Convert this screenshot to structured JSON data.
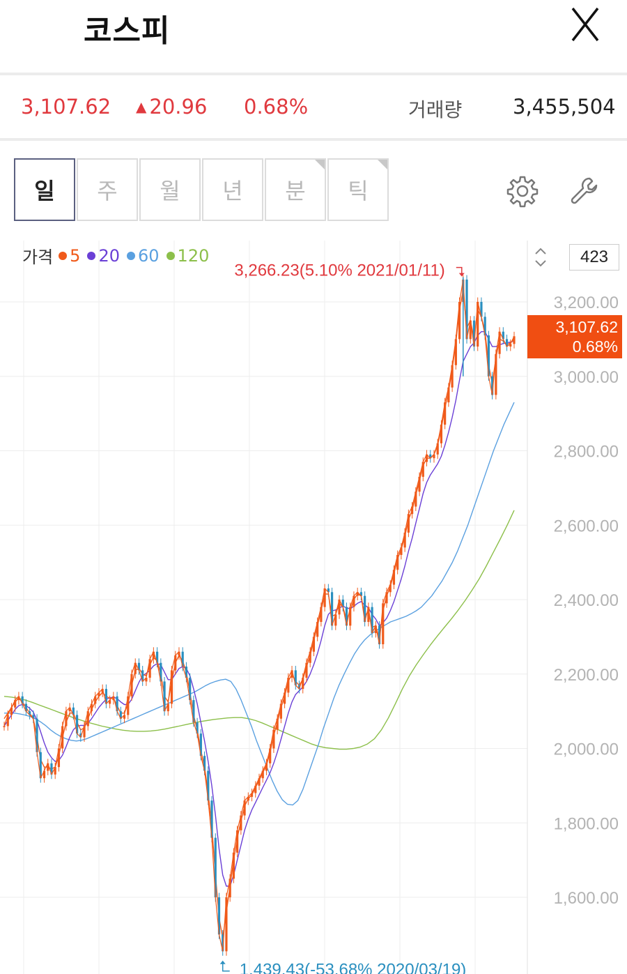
{
  "header": {
    "title": "코스피",
    "close_icon": "close-icon"
  },
  "quote": {
    "price": "3,107.62",
    "change": "20.96",
    "change_direction": "up",
    "change_percent": "0.68%",
    "volume_label": "거래량",
    "volume": "3,455,504",
    "up_color": "#e0393e"
  },
  "tabs": [
    {
      "label": "일",
      "active": true
    },
    {
      "label": "주",
      "active": false
    },
    {
      "label": "월",
      "active": false
    },
    {
      "label": "년",
      "active": false
    },
    {
      "label": "분",
      "active": false,
      "corner": true
    },
    {
      "label": "틱",
      "active": false,
      "corner": true
    }
  ],
  "tools": {
    "settings_icon": "gear-icon",
    "tools_icon": "wrench-icon"
  },
  "legend": {
    "label": "가격",
    "items": [
      {
        "name": "5",
        "color": "#f05a1a"
      },
      {
        "name": "20",
        "color": "#6a3fd6"
      },
      {
        "name": "60",
        "color": "#5aa0e0"
      },
      {
        "name": "120",
        "color": "#8cbf4a"
      }
    ]
  },
  "visible_count": "423",
  "current_tag": {
    "price": "3,107.62",
    "percent": "0.68%",
    "color": "#f04e12"
  },
  "chart_data": {
    "type": "line",
    "y_ticks": [
      "3,200.00",
      "3,000.00",
      "2,800.00",
      "2,600.00",
      "2,400.00",
      "2,200.00",
      "2,000.00",
      "1,800.00",
      "1,600.00"
    ],
    "y_tick_values": [
      3200,
      3000,
      2800,
      2600,
      2400,
      2200,
      2000,
      1800,
      1600
    ],
    "ylim": [
      1420,
      3290
    ],
    "max_annotation": "3,266.23(5.10% 2021/01/11)",
    "min_annotation": "1,439.43(-53.68% 2020/03/19)",
    "max_value": 3266.23,
    "min_value": 1439.43,
    "max_color": "#e0393e",
    "min_color": "#2a8fbf",
    "n_points": 423,
    "series": [
      {
        "name": "가격",
        "color": "#f05a1a",
        "values": [
          2060,
          2090,
          2110,
          2130,
          2140,
          2120,
          2100,
          2090,
          2080,
          1990,
          1920,
          1940,
          1960,
          1930,
          1950,
          2000,
          2060,
          2100,
          2110,
          2090,
          2040,
          2030,
          2060,
          2100,
          2120,
          2140,
          2150,
          2160,
          2120,
          2130,
          2140,
          2100,
          2080,
          2090,
          2140,
          2200,
          2230,
          2210,
          2180,
          2190,
          2240,
          2260,
          2230,
          2180,
          2100,
          2120,
          2210,
          2250,
          2260,
          2220,
          2190,
          2130,
          2070,
          2040,
          1980,
          1940,
          1860,
          1760,
          1600,
          1500,
          1455,
          1600,
          1650,
          1720,
          1780,
          1820,
          1860,
          1870,
          1880,
          1900,
          1920,
          1940,
          1960,
          2000,
          2050,
          2080,
          2120,
          2150,
          2190,
          2210,
          2170,
          2160,
          2190,
          2230,
          2260,
          2300,
          2340,
          2380,
          2430,
          2420,
          2330,
          2360,
          2400,
          2380,
          2330,
          2380,
          2410,
          2420,
          2410,
          2340,
          2380,
          2310,
          2330,
          2280,
          2390,
          2420,
          2440,
          2480,
          2520,
          2540,
          2580,
          2630,
          2650,
          2690,
          2730,
          2770,
          2790,
          2780,
          2790,
          2820,
          2870,
          2930,
          2970,
          3030,
          3100,
          3200,
          3260,
          3100,
          3150,
          3080,
          3200,
          3160,
          3110,
          3000,
          2950,
          3060,
          3120,
          3100,
          3080,
          3087,
          3107.62
        ]
      },
      {
        "name": "5",
        "color": "#f05a1a",
        "values": [
          2080,
          2095,
          2110,
          2125,
          2135,
          2125,
          2110,
          2095,
          2080,
          2030,
          1970,
          1950,
          1950,
          1945,
          1950,
          1980,
          2030,
          2070,
          2095,
          2095,
          2070,
          2050,
          2055,
          2080,
          2105,
          2125,
          2140,
          2150,
          2140,
          2135,
          2135,
          2115,
          2095,
          2095,
          2120,
          2170,
          2210,
          2215,
          2200,
          2195,
          2225,
          2245,
          2235,
          2200,
          2140,
          2125,
          2180,
          2230,
          2250,
          2235,
          2205,
          2150,
          2090,
          2050,
          1995,
          1950,
          1880,
          1790,
          1660,
          1545,
          1490,
          1560,
          1630,
          1700,
          1760,
          1805,
          1845,
          1865,
          1875,
          1895,
          1915,
          1935,
          1955,
          1990,
          2035,
          2070,
          2110,
          2140,
          2180,
          2200,
          2180,
          2170,
          2185,
          2220,
          2250,
          2290,
          2330,
          2370,
          2415,
          2415,
          2355,
          2360,
          2390,
          2380,
          2345,
          2370,
          2400,
          2415,
          2410,
          2355,
          2370,
          2325,
          2330,
          2295,
          2370,
          2410,
          2435,
          2470,
          2510,
          2535,
          2570,
          2615,
          2640,
          2680,
          2720,
          2760,
          2780,
          2780,
          2790,
          2815,
          2860,
          2915,
          2960,
          3020,
          3090,
          3180,
          3230,
          3130,
          3150,
          3100,
          3180,
          3160,
          3120,
          3030,
          2980,
          3050,
          3100,
          3095,
          3085,
          3090,
          3100
        ]
      },
      {
        "name": "20",
        "color": "#6a3fd6",
        "values": [
          2060,
          2075,
          2090,
          2105,
          2115,
          2118,
          2115,
          2108,
          2098,
          2075,
          2045,
          2015,
          1990,
          1975,
          1965,
          1968,
          1982,
          2005,
          2030,
          2050,
          2060,
          2062,
          2062,
          2068,
          2080,
          2095,
          2110,
          2122,
          2132,
          2136,
          2138,
          2134,
          2125,
          2118,
          2118,
          2132,
          2155,
          2178,
          2195,
          2202,
          2210,
          2222,
          2228,
          2225,
          2205,
          2185,
          2185,
          2200,
          2215,
          2220,
          2215,
          2195,
          2160,
          2120,
          2070,
          2020,
          1965,
          1900,
          1820,
          1730,
          1660,
          1630,
          1630,
          1660,
          1700,
          1740,
          1780,
          1810,
          1835,
          1855,
          1875,
          1895,
          1915,
          1935,
          1960,
          1990,
          2025,
          2060,
          2095,
          2125,
          2145,
          2155,
          2165,
          2180,
          2200,
          2225,
          2255,
          2290,
          2330,
          2360,
          2370,
          2372,
          2378,
          2382,
          2378,
          2375,
          2382,
          2390,
          2395,
          2385,
          2378,
          2360,
          2348,
          2330,
          2338,
          2350,
          2370,
          2395,
          2425,
          2455,
          2490,
          2530,
          2565,
          2605,
          2645,
          2685,
          2715,
          2735,
          2750,
          2765,
          2785,
          2815,
          2850,
          2890,
          2935,
          2990,
          3040,
          3060,
          3080,
          3090,
          3110,
          3120,
          3120,
          3100,
          3080,
          3080,
          3085,
          3088,
          3090,
          3092,
          3095
        ]
      },
      {
        "name": "60",
        "color": "#5aa0e0",
        "values": [
          2095,
          2095,
          2095,
          2093,
          2090,
          2086,
          2080,
          2072,
          2062,
          2050,
          2040,
          2032,
          2026,
          2022,
          2020,
          2022,
          2026,
          2032,
          2038,
          2044,
          2050,
          2056,
          2062,
          2068,
          2074,
          2080,
          2086,
          2092,
          2098,
          2104,
          2110,
          2116,
          2122,
          2128,
          2134,
          2140,
          2146,
          2152,
          2160,
          2168,
          2175,
          2180,
          2184,
          2186,
          2180,
          2160,
          2130,
          2095,
          2060,
          2020,
          1985,
          1950,
          1915,
          1885,
          1862,
          1850,
          1848,
          1860,
          1890,
          1930,
          1970,
          2010,
          2055,
          2095,
          2135,
          2170,
          2200,
          2228,
          2254,
          2275,
          2292,
          2305,
          2315,
          2324,
          2332,
          2340,
          2345,
          2350,
          2355,
          2362,
          2370,
          2380,
          2395,
          2410,
          2430,
          2450,
          2475,
          2500,
          2530,
          2565,
          2600,
          2640,
          2680,
          2720,
          2760,
          2800,
          2835,
          2870,
          2900,
          2930
        ]
      },
      {
        "name": "120",
        "color": "#8cbf4a",
        "values": [
          2140,
          2138,
          2135,
          2130,
          2124,
          2117,
          2110,
          2103,
          2096,
          2089,
          2082,
          2076,
          2070,
          2065,
          2060,
          2056,
          2052,
          2049,
          2047,
          2046,
          2046,
          2047,
          2049,
          2052,
          2056,
          2060,
          2064,
          2068,
          2072,
          2075,
          2078,
          2080,
          2082,
          2083,
          2083,
          2080,
          2075,
          2068,
          2060,
          2052,
          2044,
          2036,
          2028,
          2020,
          2012,
          2006,
          2002,
          2000,
          1998,
          1998,
          2000,
          2004,
          2012,
          2026,
          2050,
          2082,
          2120,
          2160,
          2195,
          2225,
          2252,
          2278,
          2302,
          2325,
          2348,
          2372,
          2398,
          2426,
          2456,
          2490,
          2526,
          2562,
          2600,
          2640
        ]
      }
    ]
  }
}
